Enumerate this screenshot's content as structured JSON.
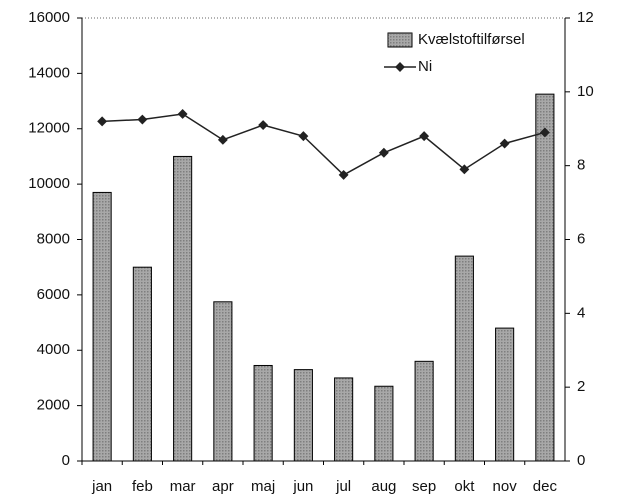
{
  "chart_data": {
    "type": "combo",
    "categories": [
      "jan",
      "feb",
      "mar",
      "apr",
      "maj",
      "jun",
      "jul",
      "aug",
      "sep",
      "okt",
      "nov",
      "dec"
    ],
    "series": [
      {
        "name": "Kvælstoftilførsel",
        "type": "bar",
        "color": "#a8a8a8",
        "values": [
          9700,
          7000,
          11000,
          5750,
          3450,
          3300,
          3000,
          2700,
          3600,
          7400,
          4800,
          13250
        ]
      },
      {
        "name": "Ni",
        "type": "line",
        "axis": "y2",
        "color": "#222222",
        "values": [
          9.2,
          9.25,
          9.4,
          8.7,
          9.1,
          8.8,
          7.75,
          8.35,
          8.8,
          7.9,
          8.6,
          8.9
        ]
      }
    ],
    "ylim": [
      0,
      16000
    ],
    "yticks": [
      0,
      2000,
      4000,
      6000,
      8000,
      10000,
      12000,
      14000,
      16000
    ],
    "y2lim": [
      0,
      12
    ],
    "y2ticks": [
      0,
      2,
      4,
      6,
      8,
      10,
      12
    ],
    "legend": "top-right"
  }
}
